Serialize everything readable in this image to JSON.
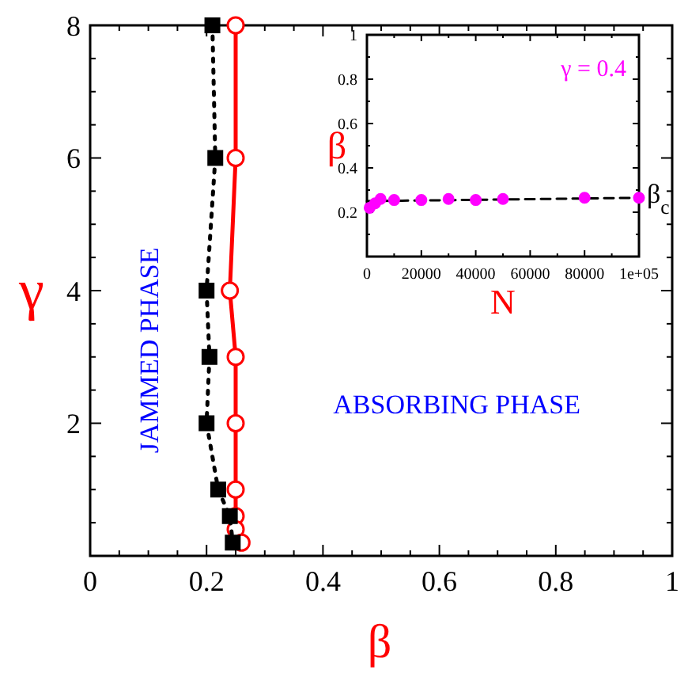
{
  "chart_data": [
    {
      "type": "line",
      "xlabel": "β",
      "ylabel": "γ",
      "xlim": [
        0,
        1
      ],
      "ylim": [
        0,
        8
      ],
      "xticks": [
        0,
        {
          "value": 0.05,
          "label": null
        },
        {
          "value": 0.1,
          "label": null
        },
        {
          "value": 0.15,
          "label": null
        },
        0.2,
        {
          "value": 0.25,
          "label": null
        },
        {
          "value": 0.3,
          "label": null
        },
        {
          "value": 0.35,
          "label": null
        },
        0.4,
        {
          "value": 0.45,
          "label": null
        },
        {
          "value": 0.5,
          "label": null
        },
        {
          "value": 0.55,
          "label": null
        },
        0.6,
        {
          "value": 0.65,
          "label": null
        },
        {
          "value": 0.7,
          "label": null
        },
        {
          "value": 0.75,
          "label": null
        },
        0.8,
        {
          "value": 0.85,
          "label": null
        },
        {
          "value": 0.9,
          "label": null
        },
        {
          "value": 0.95,
          "label": null
        },
        1
      ],
      "yticks": [
        {
          "value": 0,
          "label": null
        },
        {
          "value": 0.5,
          "label": null
        },
        {
          "value": 1,
          "label": null
        },
        {
          "value": 1.5,
          "label": null
        },
        2,
        {
          "value": 2.5,
          "label": null
        },
        {
          "value": 3,
          "label": null
        },
        {
          "value": 3.5,
          "label": null
        },
        4,
        {
          "value": 4.5,
          "label": null
        },
        {
          "value": 5,
          "label": null
        },
        {
          "value": 5.5,
          "label": null
        },
        6,
        {
          "value": 6.5,
          "label": null
        },
        {
          "value": 7,
          "label": null
        },
        {
          "value": 7.5,
          "label": null
        },
        8
      ],
      "series": [
        {
          "color": "#000000",
          "marker": "square",
          "line_style": "dotted",
          "x": [
            0.21,
            0.215,
            0.2,
            0.205,
            0.2,
            0.22,
            0.24,
            0.245
          ],
          "values": [
            8,
            6,
            4,
            3,
            2,
            1,
            0.6,
            0.2
          ]
        },
        {
          "color": "#ff0000",
          "marker": "circle",
          "line_style": "solid",
          "x": [
            0.25,
            0.25,
            0.24,
            0.25,
            0.25,
            0.25,
            0.25,
            0.25,
            0.26
          ],
          "values": [
            8,
            6,
            4,
            3,
            2,
            1,
            0.6,
            0.4,
            0.2
          ]
        }
      ],
      "annotations": [
        "JAMMED PHASE",
        "ABSORBING PHASE"
      ],
      "grid": false
    },
    {
      "type": "scatter",
      "xlabel": "N",
      "ylabel": "β",
      "xlim": [
        0,
        100000
      ],
      "ylim": [
        0,
        1
      ],
      "xticks": [
        0,
        {
          "value": 10000,
          "label": null
        },
        20000,
        {
          "value": 30000,
          "label": null
        },
        40000,
        {
          "value": 50000,
          "label": null
        },
        60000,
        {
          "value": 70000,
          "label": null
        },
        80000,
        {
          "value": 90000,
          "label": null
        },
        {
          "value": 100000,
          "label": "1e+05"
        }
      ],
      "yticks": [
        {
          "value": 0,
          "label": null
        },
        {
          "value": 0.1,
          "label": null
        },
        0.2,
        {
          "value": 0.3,
          "label": null
        },
        0.4,
        {
          "value": 0.5,
          "label": null
        },
        0.6,
        {
          "value": 0.7,
          "label": null
        },
        0.8,
        {
          "value": 0.9,
          "label": null
        },
        1
      ],
      "series": [
        {
          "color": "#ff00ff",
          "marker": "circle",
          "x": [
            1000,
            3000,
            5000,
            10000,
            20000,
            30000,
            40000,
            50000,
            80000,
            100000
          ],
          "values": [
            0.22,
            0.24,
            0.26,
            0.255,
            0.255,
            0.26,
            0.255,
            0.26,
            0.265,
            0.265
          ]
        },
        {
          "type": "line",
          "color": "#000000",
          "marker": "none",
          "line_style": "dashed",
          "x": [
            0,
            100000
          ],
          "values": [
            0.25,
            0.265
          ]
        }
      ],
      "annotations": [
        "γ = 0.4",
        "β$_{c}$"
      ],
      "grid": false
    }
  ]
}
